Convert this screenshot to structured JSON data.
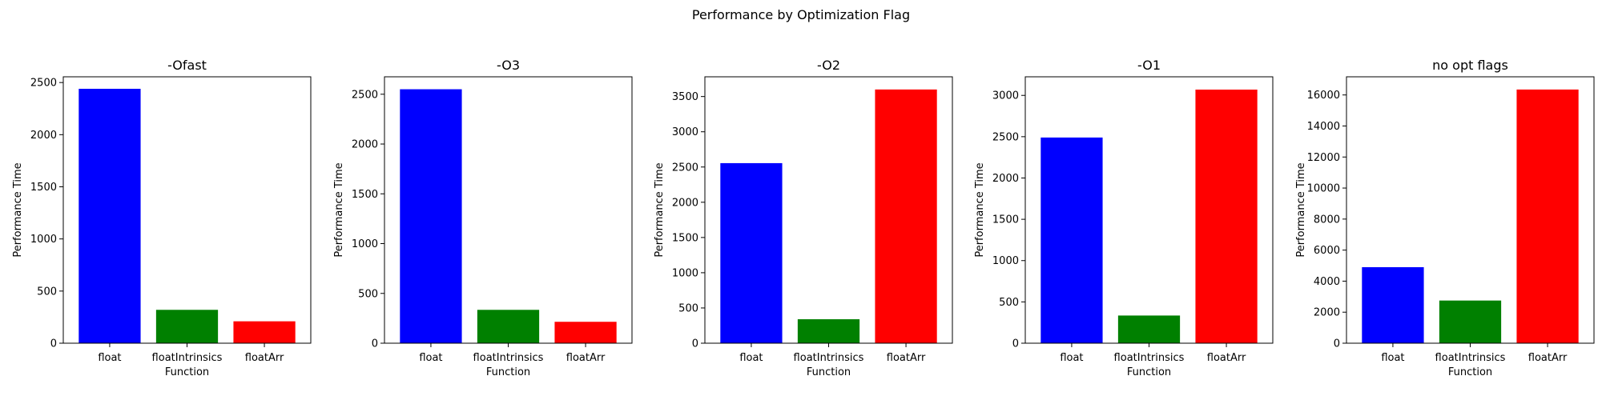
{
  "figure": {
    "suptitle": "Performance by Optimization Flag"
  },
  "chart_data": [
    {
      "type": "bar",
      "title": "-Ofast",
      "xlabel": "Function",
      "ylabel": "Performance Time",
      "categories": [
        "float",
        "floatIntrinsics",
        "floatArr"
      ],
      "values": [
        2440,
        320,
        210
      ],
      "colors": [
        "#0000ff",
        "#008000",
        "#ff0000"
      ],
      "ylim": [
        0,
        2555
      ],
      "yticks": [
        0,
        500,
        1000,
        1500,
        2000,
        2500
      ]
    },
    {
      "type": "bar",
      "title": "-O3",
      "xlabel": "Function",
      "ylabel": "Performance Time",
      "categories": [
        "float",
        "floatIntrinsics",
        "floatArr"
      ],
      "values": [
        2550,
        335,
        215
      ],
      "colors": [
        "#0000ff",
        "#008000",
        "#ff0000"
      ],
      "ylim": [
        0,
        2675
      ],
      "yticks": [
        0,
        500,
        1000,
        1500,
        2000,
        2500
      ]
    },
    {
      "type": "bar",
      "title": "-O2",
      "xlabel": "Function",
      "ylabel": "Performance Time",
      "categories": [
        "float",
        "floatIntrinsics",
        "floatArr"
      ],
      "values": [
        2555,
        340,
        3600
      ],
      "colors": [
        "#0000ff",
        "#008000",
        "#ff0000"
      ],
      "ylim": [
        0,
        3780
      ],
      "yticks": [
        0,
        500,
        1000,
        1500,
        2000,
        2500,
        3000,
        3500
      ]
    },
    {
      "type": "bar",
      "title": "-O1",
      "xlabel": "Function",
      "ylabel": "Performance Time",
      "categories": [
        "float",
        "floatIntrinsics",
        "floatArr"
      ],
      "values": [
        2490,
        335,
        3070
      ],
      "colors": [
        "#0000ff",
        "#008000",
        "#ff0000"
      ],
      "ylim": [
        0,
        3225
      ],
      "yticks": [
        0,
        500,
        1000,
        1500,
        2000,
        2500,
        3000
      ]
    },
    {
      "type": "bar",
      "title": "no opt flags",
      "xlabel": "Function",
      "ylabel": "Performance Time",
      "categories": [
        "float",
        "floatIntrinsics",
        "floatArr"
      ],
      "values": [
        4900,
        2750,
        16350
      ],
      "colors": [
        "#0000ff",
        "#008000",
        "#ff0000"
      ],
      "ylim": [
        0,
        17170
      ],
      "yticks": [
        0,
        2000,
        4000,
        6000,
        8000,
        10000,
        12000,
        14000,
        16000
      ]
    }
  ]
}
